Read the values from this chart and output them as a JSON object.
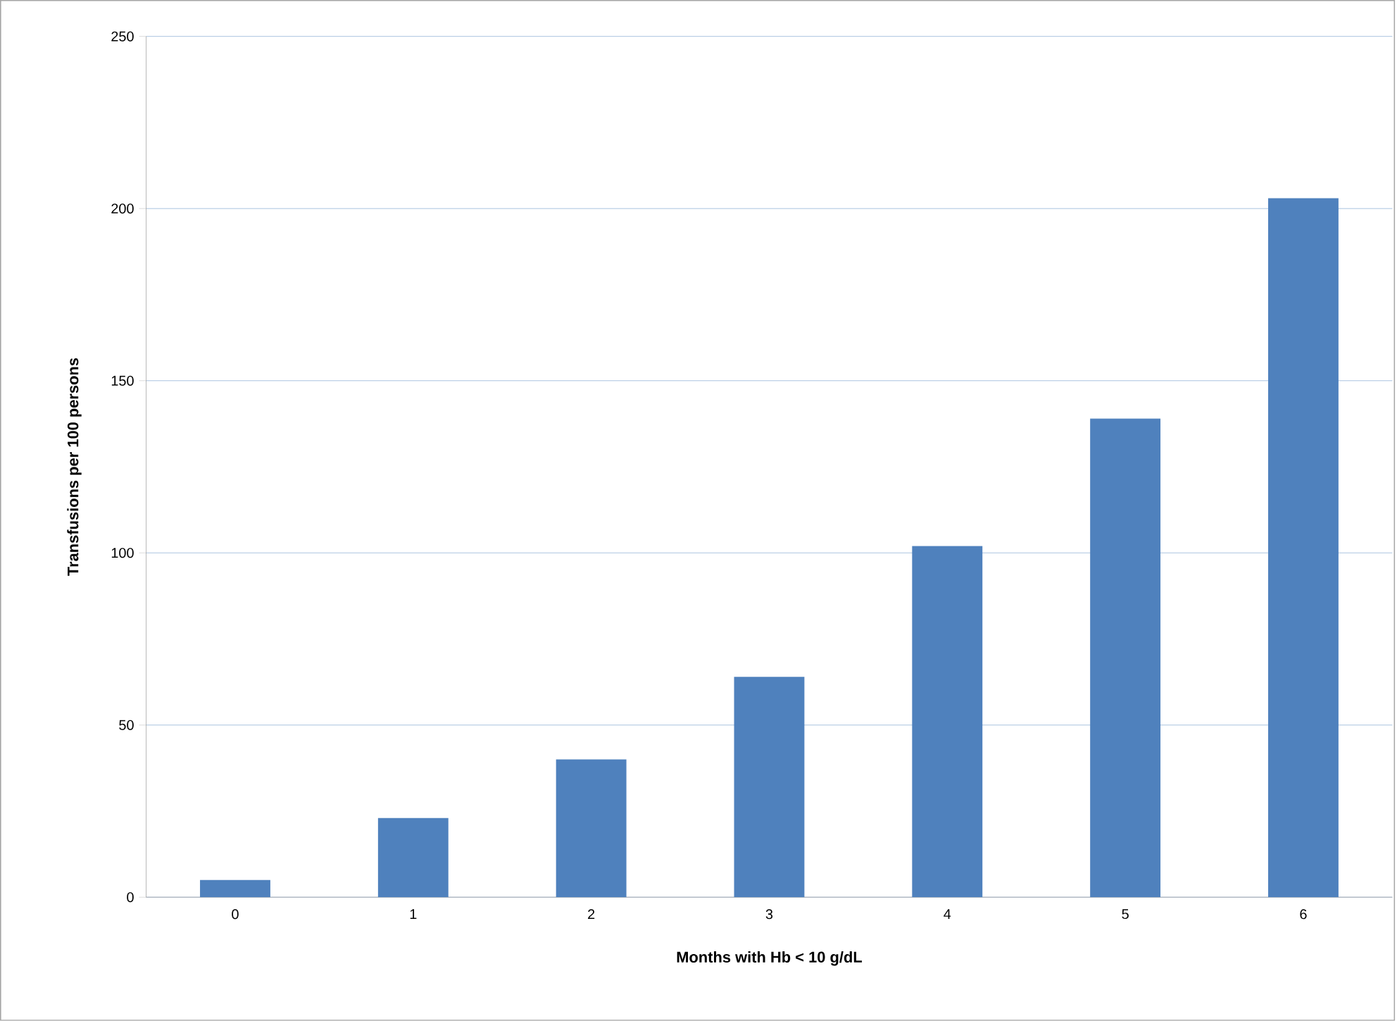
{
  "chart_data": {
    "type": "bar",
    "xlabel": "Months with Hb < 10 g/dL",
    "ylabel": "Transfusions per 100 persons",
    "categories": [
      "0",
      "1",
      "2",
      "3",
      "4",
      "5",
      "6"
    ],
    "values": [
      5,
      23,
      40,
      64,
      102,
      139,
      203
    ],
    "color": "#4f81bd",
    "ylim": [
      0,
      250
    ],
    "yticks": [
      0,
      50,
      100,
      150,
      200,
      250
    ],
    "grid": "y"
  }
}
